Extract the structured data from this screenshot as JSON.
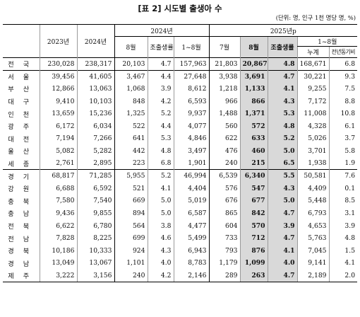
{
  "title": "[표 2] 시도별 출생아 수",
  "unit": "(단위: 명, 인구 1천 명당 명, %)",
  "header": {
    "y2023": "2023년",
    "y2024": "2024년",
    "grp2024": "2024년",
    "grp2025": "2025년p",
    "aug": "8월",
    "cbr": "조출생률",
    "jan_aug": "1~8월",
    "jul": "7월",
    "cum": "누계",
    "yoy": "전년동기비"
  },
  "rows": [
    {
      "region": "전국",
      "y2023": "230,028",
      "y2024": "238,317",
      "aug24": "20,103",
      "cbr24": "4.7",
      "cum24": "157,963",
      "jul25": "21,803",
      "aug25": "20,867",
      "cbr25": "4.8",
      "cum25": "168,671",
      "yoy": "6.8"
    },
    {
      "region": "서울",
      "y2023": "39,456",
      "y2024": "41,605",
      "aug24": "3,467",
      "cbr24": "4.4",
      "cum24": "27,648",
      "jul25": "3,938",
      "aug25": "3,691",
      "cbr25": "4.7",
      "cum25": "30,221",
      "yoy": "9.3"
    },
    {
      "region": "부산",
      "y2023": "12,866",
      "y2024": "13,063",
      "aug24": "1,068",
      "cbr24": "3.9",
      "cum24": "8,612",
      "jul25": "1,218",
      "aug25": "1,133",
      "cbr25": "4.1",
      "cum25": "9,255",
      "yoy": "7.5"
    },
    {
      "region": "대구",
      "y2023": "9,410",
      "y2024": "10,103",
      "aug24": "848",
      "cbr24": "4.2",
      "cum24": "6,593",
      "jul25": "966",
      "aug25": "866",
      "cbr25": "4.3",
      "cum25": "7,172",
      "yoy": "8.8"
    },
    {
      "region": "인천",
      "y2023": "13,659",
      "y2024": "15,236",
      "aug24": "1,325",
      "cbr24": "5.2",
      "cum24": "9,937",
      "jul25": "1,488",
      "aug25": "1,371",
      "cbr25": "5.3",
      "cum25": "11,008",
      "yoy": "10.8"
    },
    {
      "region": "광주",
      "y2023": "6,172",
      "y2024": "6,034",
      "aug24": "522",
      "cbr24": "4.4",
      "cum24": "4,077",
      "jul25": "560",
      "aug25": "572",
      "cbr25": "4.8",
      "cum25": "4,328",
      "yoy": "6.1"
    },
    {
      "region": "대전",
      "y2023": "7,194",
      "y2024": "7,266",
      "aug24": "641",
      "cbr24": "5.3",
      "cum24": "4,846",
      "jul25": "622",
      "aug25": "633",
      "cbr25": "5.2",
      "cum25": "5,026",
      "yoy": "3.7"
    },
    {
      "region": "울산",
      "y2023": "5,082",
      "y2024": "5,282",
      "aug24": "442",
      "cbr24": "4.8",
      "cum24": "3,497",
      "jul25": "476",
      "aug25": "460",
      "cbr25": "5.0",
      "cum25": "3,701",
      "yoy": "5.8"
    },
    {
      "region": "세종",
      "y2023": "2,761",
      "y2024": "2,895",
      "aug24": "223",
      "cbr24": "6.8",
      "cum24": "1,901",
      "jul25": "240",
      "aug25": "215",
      "cbr25": "6.5",
      "cum25": "1,938",
      "yoy": "1.9"
    },
    {
      "region": "경기",
      "y2023": "68,817",
      "y2024": "71,285",
      "aug24": "5,955",
      "cbr24": "5.2",
      "cum24": "46,994",
      "jul25": "6,539",
      "aug25": "6,340",
      "cbr25": "5.5",
      "cum25": "50,581",
      "yoy": "7.6"
    },
    {
      "region": "강원",
      "y2023": "6,688",
      "y2024": "6,592",
      "aug24": "521",
      "cbr24": "4.1",
      "cum24": "4,404",
      "jul25": "576",
      "aug25": "547",
      "cbr25": "4.3",
      "cum25": "4,409",
      "yoy": "0.1"
    },
    {
      "region": "충북",
      "y2023": "7,580",
      "y2024": "7,540",
      "aug24": "669",
      "cbr24": "5.0",
      "cum24": "5,019",
      "jul25": "676",
      "aug25": "677",
      "cbr25": "5.0",
      "cum25": "5,448",
      "yoy": "8.5"
    },
    {
      "region": "충남",
      "y2023": "9,436",
      "y2024": "9,855",
      "aug24": "894",
      "cbr24": "5.0",
      "cum24": "6,587",
      "jul25": "865",
      "aug25": "842",
      "cbr25": "4.7",
      "cum25": "6,793",
      "yoy": "3.1"
    },
    {
      "region": "전북",
      "y2023": "6,622",
      "y2024": "6,780",
      "aug24": "564",
      "cbr24": "3.8",
      "cum24": "4,477",
      "jul25": "604",
      "aug25": "570",
      "cbr25": "3.9",
      "cum25": "4,653",
      "yoy": "3.9"
    },
    {
      "region": "전남",
      "y2023": "7,828",
      "y2024": "8,225",
      "aug24": "699",
      "cbr24": "4.6",
      "cum24": "5,499",
      "jul25": "733",
      "aug25": "712",
      "cbr25": "4.7",
      "cum25": "5,763",
      "yoy": "4.8"
    },
    {
      "region": "경북",
      "y2023": "10,186",
      "y2024": "10,333",
      "aug24": "924",
      "cbr24": "4.3",
      "cum24": "6,943",
      "jul25": "793",
      "aug25": "876",
      "cbr25": "4.1",
      "cum25": "7,045",
      "yoy": "1.5"
    },
    {
      "region": "경남",
      "y2023": "13,049",
      "y2024": "13,067",
      "aug24": "1,101",
      "cbr24": "4.0",
      "cum24": "8,783",
      "jul25": "1,179",
      "aug25": "1,099",
      "cbr25": "4.0",
      "cum25": "9,141",
      "yoy": "4.1"
    },
    {
      "region": "제주",
      "y2023": "3,222",
      "y2024": "3,156",
      "aug24": "240",
      "cbr24": "4.2",
      "cum24": "2,146",
      "jul25": "289",
      "aug25": "263",
      "cbr25": "4.7",
      "cum25": "2,189",
      "yoy": "2.0"
    }
  ]
}
